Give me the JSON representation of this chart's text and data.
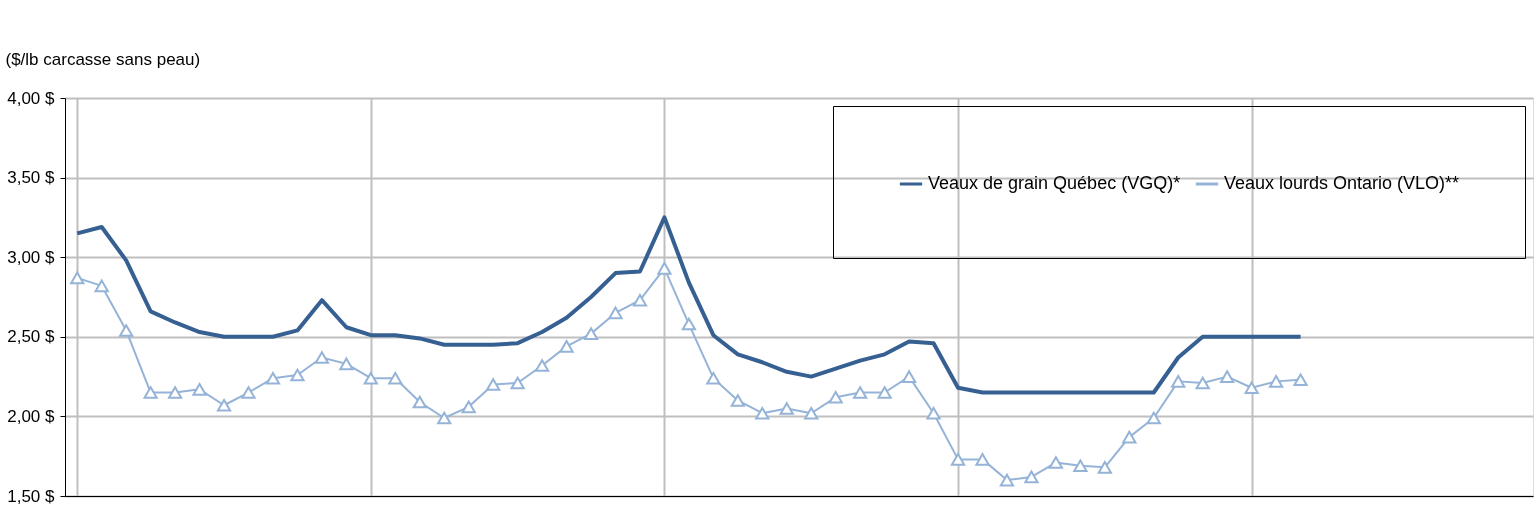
{
  "chart_data": {
    "type": "line",
    "ylabel": "($/lb carcasse sans peau)",
    "categories": [
      null,
      null,
      null,
      null,
      null,
      null,
      null,
      null,
      null,
      null,
      null,
      null,
      null,
      null,
      null,
      null,
      null,
      null,
      null,
      null,
      null,
      null,
      null,
      null,
      null,
      null,
      null,
      null,
      null,
      null,
      null,
      null,
      null,
      null,
      null,
      null,
      null,
      null,
      null,
      null,
      null,
      null,
      null,
      null,
      null,
      null,
      null,
      null,
      null,
      null,
      null,
      null,
      null,
      null,
      null,
      null,
      null,
      null,
      null,
      null
    ],
    "series": [
      {
        "name": "Veaux de grain Québec (VGQ)*",
        "color": "#376092",
        "marker": "none",
        "values": [
          3.15,
          3.19,
          2.98,
          2.66,
          2.59,
          2.53,
          2.5,
          2.5,
          2.5,
          2.54,
          2.73,
          2.56,
          2.51,
          2.51,
          2.49,
          2.45,
          2.45,
          2.45,
          2.46,
          2.53,
          2.62,
          2.75,
          2.9,
          2.91,
          3.25,
          2.84,
          2.51,
          2.39,
          2.34,
          2.28,
          2.25,
          2.3,
          2.35,
          2.39,
          2.47,
          2.46,
          2.18,
          2.15,
          2.15,
          2.15,
          2.15,
          2.15,
          2.15,
          2.15,
          2.15,
          2.37,
          2.5,
          2.5,
          2.5,
          2.5,
          2.5,
          null,
          null,
          null,
          null,
          null,
          null,
          null,
          null,
          null
        ]
      },
      {
        "name": "Veaux lourds Ontario (VLO)**",
        "color": "#95b3d7",
        "marker": "triangle",
        "values": [
          2.87,
          2.82,
          2.54,
          2.15,
          2.15,
          2.17,
          2.07,
          2.15,
          2.24,
          2.26,
          2.37,
          2.33,
          2.24,
          2.24,
          2.09,
          1.99,
          2.06,
          2.2,
          2.21,
          2.32,
          2.44,
          2.52,
          2.65,
          2.73,
          2.93,
          2.58,
          2.24,
          2.1,
          2.02,
          2.05,
          2.02,
          2.12,
          2.15,
          2.15,
          2.25,
          2.02,
          1.73,
          1.73,
          1.6,
          1.62,
          1.71,
          1.69,
          1.68,
          1.87,
          1.99,
          2.22,
          2.21,
          2.25,
          2.18,
          2.22,
          2.23,
          null,
          null,
          null,
          null,
          null,
          null,
          null,
          null,
          null
        ]
      }
    ],
    "ylim": [
      1.5,
      4.0
    ],
    "yticks": [
      {
        "value": 1.5,
        "label": "1,50  $"
      },
      {
        "value": 2.0,
        "label": "2,00  $"
      },
      {
        "value": 2.5,
        "label": "2,50  $"
      },
      {
        "value": 3.0,
        "label": "3,00  $"
      },
      {
        "value": 3.5,
        "label": "3,50  $"
      },
      {
        "value": 4.0,
        "label": "4,00  $"
      }
    ],
    "grid": true,
    "legend": "top right"
  }
}
